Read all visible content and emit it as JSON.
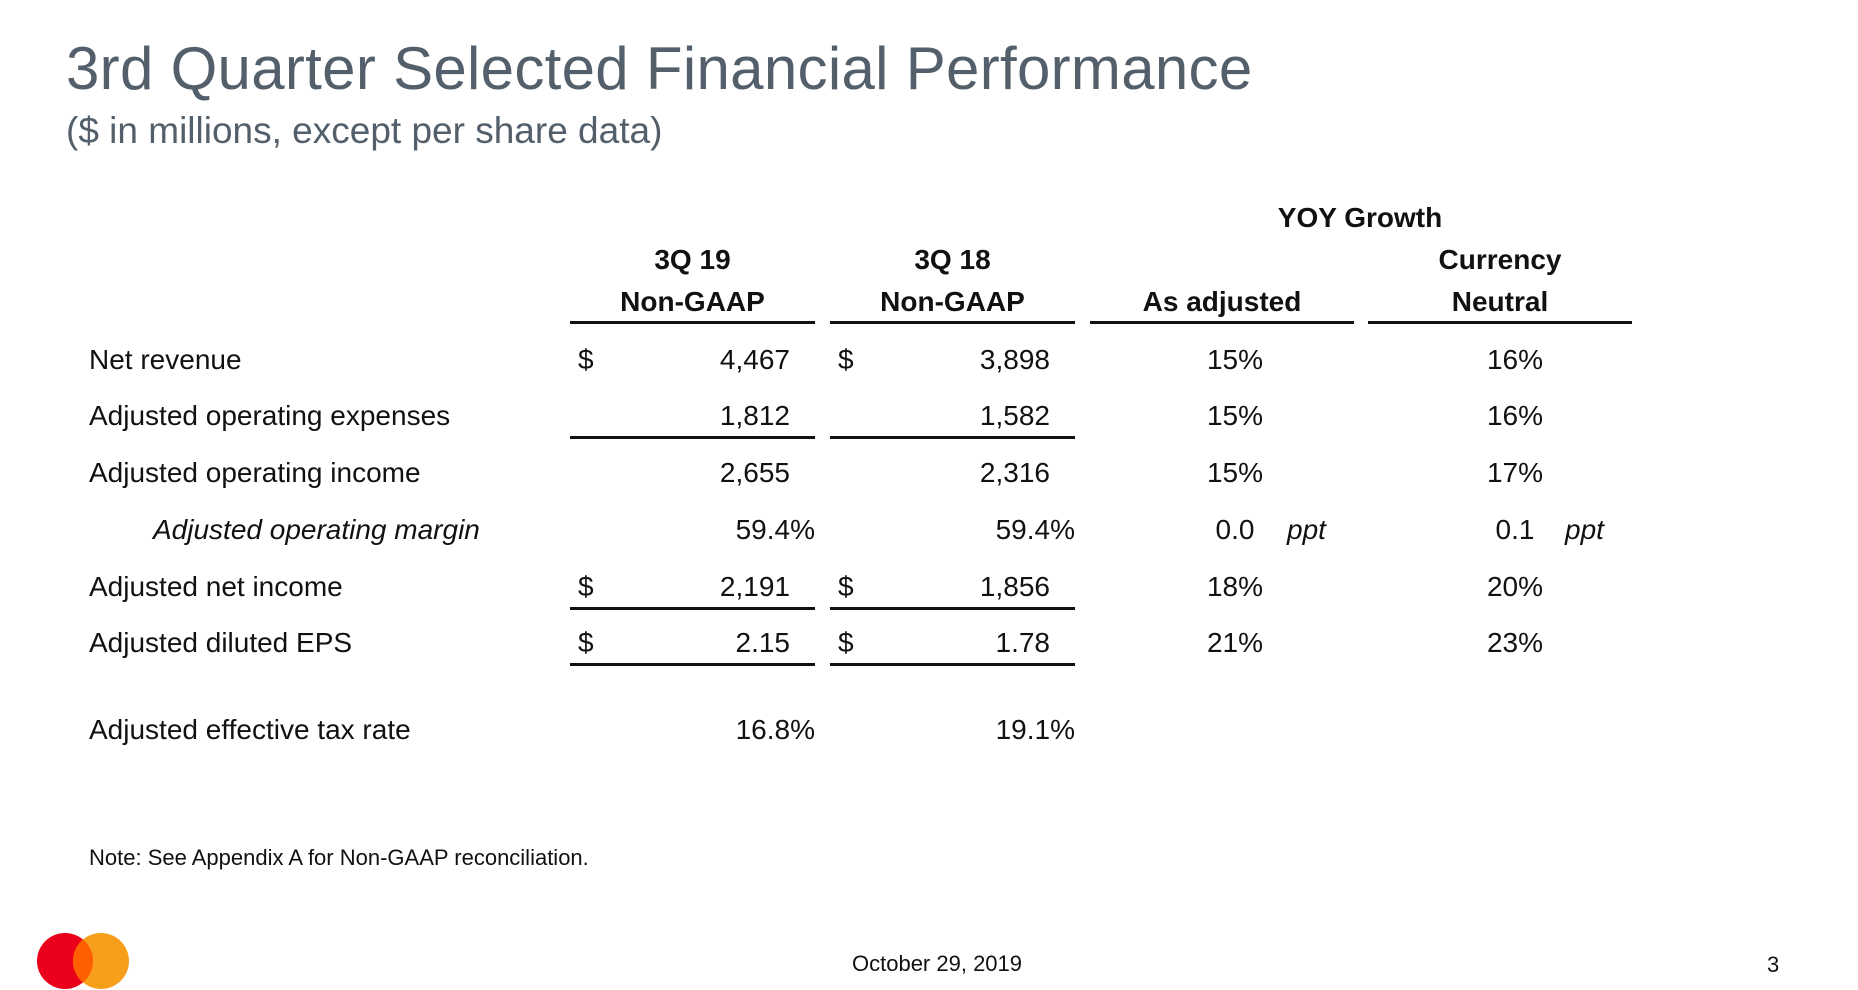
{
  "title": "3rd Quarter Selected Financial Performance",
  "subtitle": "($ in millions, except per share data)",
  "columns": {
    "yoy_group": "YOY Growth",
    "q319_line1": "3Q 19",
    "q319_line2": "Non-GAAP",
    "q318_line1": "3Q 18",
    "q318_line2": "Non-GAAP",
    "as_adjusted": "As adjusted",
    "currency_line1": "Currency",
    "currency_line2": "Neutral"
  },
  "rows": [
    {
      "label": "Net revenue",
      "cur1": "$",
      "q319": "4,467",
      "cur2": "$",
      "q318": "3,898",
      "as_adjusted": "15%",
      "currency_neutral": "16%"
    },
    {
      "label": "Adjusted operating expenses",
      "cur1": "",
      "q319": "1,812",
      "cur2": "",
      "q318": "1,582",
      "as_adjusted": "15%",
      "currency_neutral": "16%"
    },
    {
      "label": "Adjusted operating income",
      "cur1": "",
      "q319": "2,655",
      "cur2": "",
      "q318": "2,316",
      "as_adjusted": "15%",
      "currency_neutral": "17%"
    },
    {
      "label": "Adjusted operating margin",
      "cur1": "",
      "q319": "59.4%",
      "cur2": "",
      "q318": "59.4%",
      "as_adjusted": "0.0",
      "as_adjusted_unit": "ppt",
      "currency_neutral": "0.1",
      "currency_neutral_unit": "ppt"
    },
    {
      "label": "Adjusted net income",
      "cur1": "$",
      "q319": "2,191",
      "cur2": "$",
      "q318": "1,856",
      "as_adjusted": "18%",
      "currency_neutral": "20%"
    },
    {
      "label": "Adjusted diluted EPS",
      "cur1": "$",
      "q319": "2.15",
      "cur2": "$",
      "q318": "1.78",
      "as_adjusted": "21%",
      "currency_neutral": "23%"
    },
    {
      "label": "Adjusted effective tax rate",
      "cur1": "",
      "q319": "16.8%",
      "cur2": "",
      "q318": "19.1%",
      "as_adjusted": "",
      "currency_neutral": ""
    }
  ],
  "note": "Note: See Appendix A for Non-GAAP reconciliation.",
  "footer": {
    "date": "October 29, 2019",
    "page_number": "3"
  },
  "logo": {
    "name": "mastercard-logo",
    "colors": {
      "left": "#eb001b",
      "right": "#f79e1b",
      "overlap": "#ff5f00"
    }
  }
}
